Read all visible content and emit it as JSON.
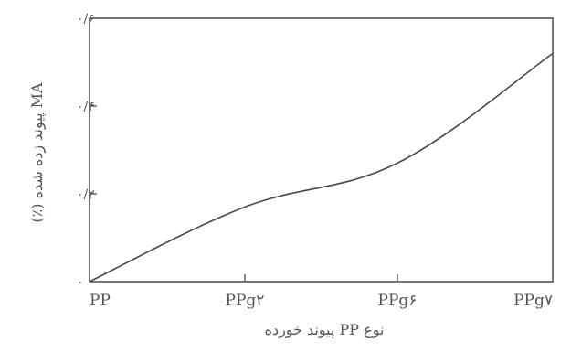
{
  "chart_data": {
    "type": "line",
    "title": "",
    "xlabel": "نوع PP پیوند خورده",
    "ylabel": "MA پیوند زده شده (٪)",
    "categories": [
      "PP",
      "PPg۲",
      "PPg۶",
      "PPg۷"
    ],
    "series": [
      {
        "values": [
          0,
          0.17,
          0.27,
          0.52
        ]
      }
    ],
    "yticks": [
      {
        "value": 0,
        "label": "۰"
      },
      {
        "value": 0.2,
        "label": "۰/۲"
      },
      {
        "value": 0.4,
        "label": "۰/۴"
      },
      {
        "value": 0.6,
        "label": "۰/۶"
      }
    ],
    "ylim": [
      0,
      0.6
    ],
    "grid": false,
    "legend": "none",
    "colors": {
      "line": "#4a4a4a",
      "axis": "#555555",
      "text": "#555555"
    }
  }
}
